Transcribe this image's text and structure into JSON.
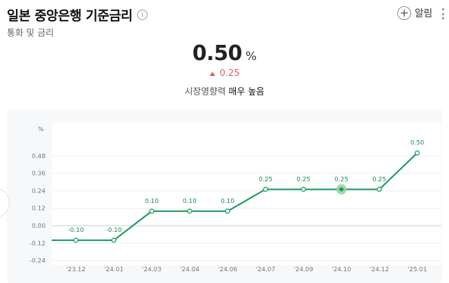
{
  "header": {
    "title": "일본 중앙은행 기준금리",
    "info_icon": "i",
    "subtitle": "통화 및 금리",
    "alarm_label": "알림",
    "plus_icon": "+"
  },
  "summary": {
    "value": "0.50",
    "unit": "%",
    "change": "0.25",
    "change_direction": "up",
    "impact_label": "시장영향력",
    "impact_value": "매우 높음"
  },
  "colors": {
    "line": "#1a9b5f",
    "up": "#e55a5a",
    "highlight": "#8fd69a"
  },
  "chart_data": {
    "type": "line",
    "ylabel": "%",
    "ylim": [
      -0.24,
      0.6
    ],
    "y_ticks": [
      "0.48",
      "0.36",
      "0.24",
      "0.12",
      "0.00",
      "-0.12",
      "-0.24"
    ],
    "y_tick_values": [
      0.48,
      0.36,
      0.24,
      0.12,
      0.0,
      -0.12,
      -0.24
    ],
    "categories": [
      "'23.12",
      "'24.01",
      "'24.03",
      "'24.04",
      "'24.06",
      "'24.07",
      "'24.09",
      "'24.10",
      "'24.12",
      "'25.01"
    ],
    "values": [
      -0.1,
      -0.1,
      0.1,
      0.1,
      0.1,
      0.25,
      0.25,
      0.25,
      0.25,
      0.5
    ],
    "data_labels": [
      "-0.10",
      "-0.10",
      "0.10",
      "0.10",
      "0.10",
      "0.25",
      "0.25",
      "0.25",
      "0.25",
      "0.50"
    ],
    "highlight_index": 7,
    "grid": true
  }
}
